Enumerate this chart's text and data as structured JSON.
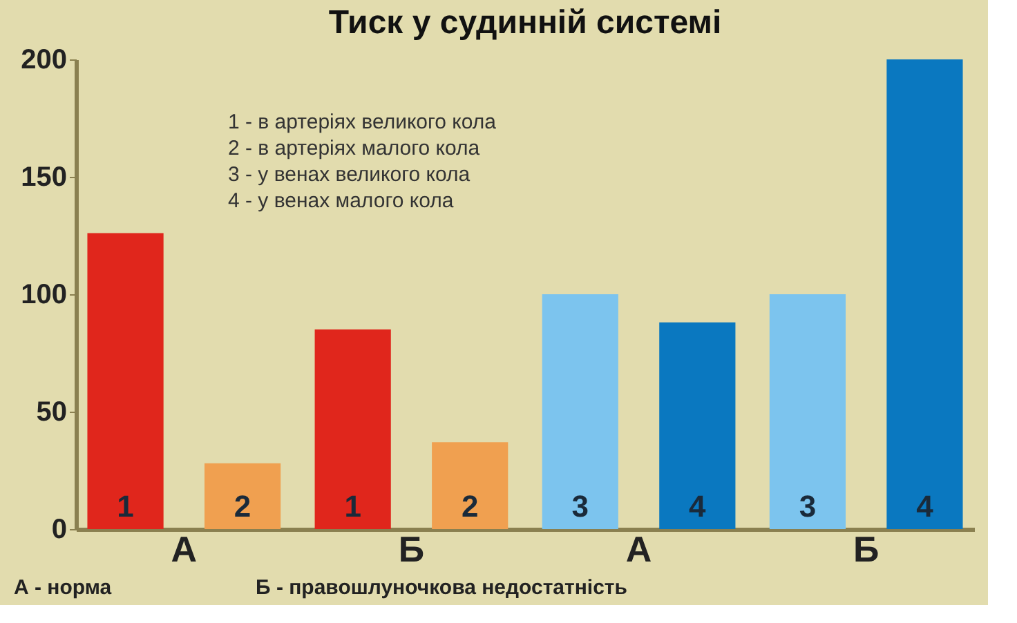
{
  "chart_data": {
    "type": "bar",
    "title": "Тиск у судинній системі",
    "categories": [
      "А",
      "Б",
      "А",
      "Б"
    ],
    "series": [
      {
        "name": "1",
        "color": "#e0261c",
        "values": [
          126,
          85,
          null,
          null
        ]
      },
      {
        "name": "2",
        "color": "#f0a050",
        "values": [
          28,
          37,
          null,
          null
        ]
      },
      {
        "name": "3",
        "color": "#7cc4ee",
        "values": [
          null,
          null,
          100,
          100
        ]
      },
      {
        "name": "4",
        "color": "#0a78c0",
        "values": [
          null,
          null,
          88,
          200
        ]
      }
    ],
    "ylim": [
      0,
      200
    ],
    "yticks": [
      0,
      50,
      100,
      150,
      200
    ],
    "grid": false,
    "annotations": [
      "1 - в артеріях великого кола",
      "2 - в артеріях малого кола",
      "3 - у венах великого кола",
      "4 - у венах малого кола",
      "А - норма",
      "Б - правошлуночкова недостатність"
    ]
  }
}
